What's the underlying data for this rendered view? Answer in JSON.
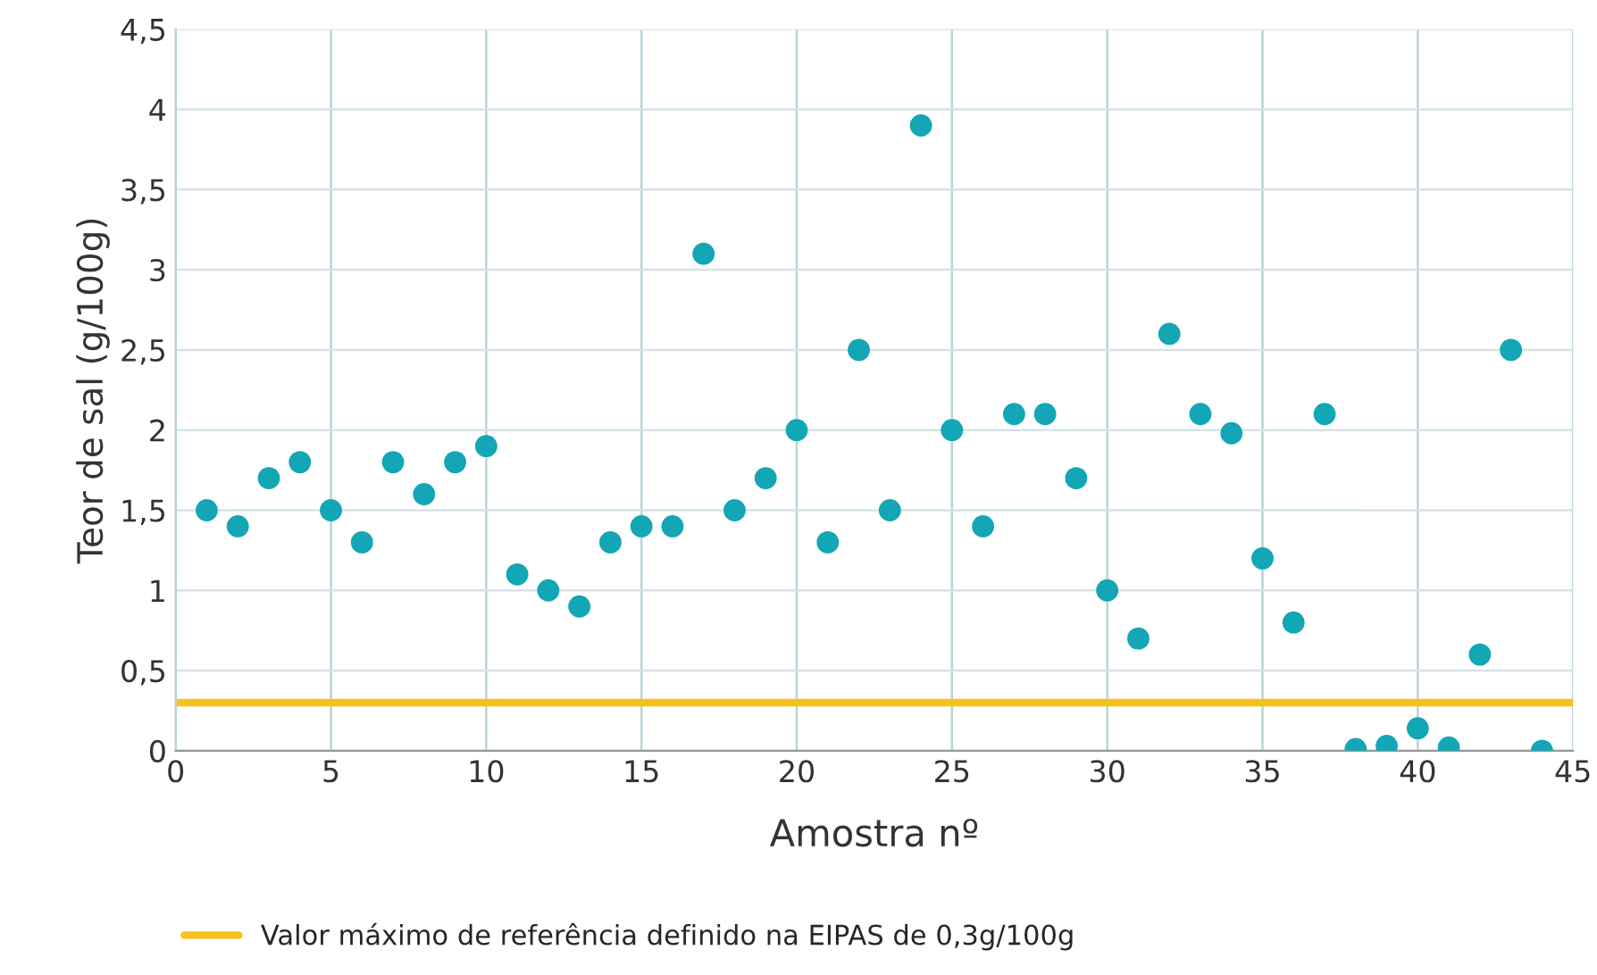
{
  "chart_data": {
    "type": "scatter",
    "xlabel": "Amostra nº",
    "ylabel": "Teor de sal (g/100g)",
    "x": [
      1,
      2,
      3,
      4,
      5,
      6,
      7,
      8,
      9,
      10,
      11,
      12,
      13,
      14,
      15,
      16,
      17,
      18,
      19,
      20,
      21,
      22,
      23,
      24,
      25,
      26,
      27,
      28,
      29,
      30,
      31,
      32,
      33,
      34,
      35,
      36,
      37,
      38,
      39,
      40,
      41,
      42,
      43,
      44
    ],
    "series": [
      {
        "color": "#13a6b4",
        "values": [
          1.5,
          1.4,
          1.7,
          1.8,
          1.5,
          1.3,
          1.8,
          1.6,
          1.8,
          1.9,
          1.1,
          1.0,
          0.9,
          1.3,
          1.4,
          1.4,
          3.1,
          1.5,
          1.7,
          2.0,
          1.3,
          2.5,
          1.5,
          3.9,
          2.0,
          1.4,
          2.1,
          2.1,
          1.7,
          1.0,
          0.7,
          2.6,
          2.1,
          1.98,
          1.2,
          0.8,
          2.1,
          0.01,
          0.03,
          0.14,
          0.02,
          0.6,
          2.5,
          0
        ]
      }
    ],
    "marker": "circle",
    "xlim": [
      0,
      45
    ],
    "xticks": [
      0,
      5,
      10,
      15,
      20,
      25,
      30,
      35,
      40,
      45
    ],
    "ylim": [
      0,
      4.5
    ],
    "yticks": [
      0,
      {
        "value": 0.5,
        "label": "0,5"
      },
      1,
      {
        "value": 1.5,
        "label": "1,5"
      },
      2,
      {
        "value": 2.5,
        "label": "2,5"
      },
      3,
      {
        "value": 3.5,
        "label": "3,5"
      },
      4,
      {
        "value": 4.5,
        "label": "4,5"
      }
    ],
    "ref_lines": [
      {
        "axis": "y",
        "value": 0.3,
        "label": "Valor máximo de referência definido na EIPAS de 0,3g/100g",
        "color": "#f7c11e"
      }
    ],
    "grid": true,
    "legend": "bottom"
  }
}
